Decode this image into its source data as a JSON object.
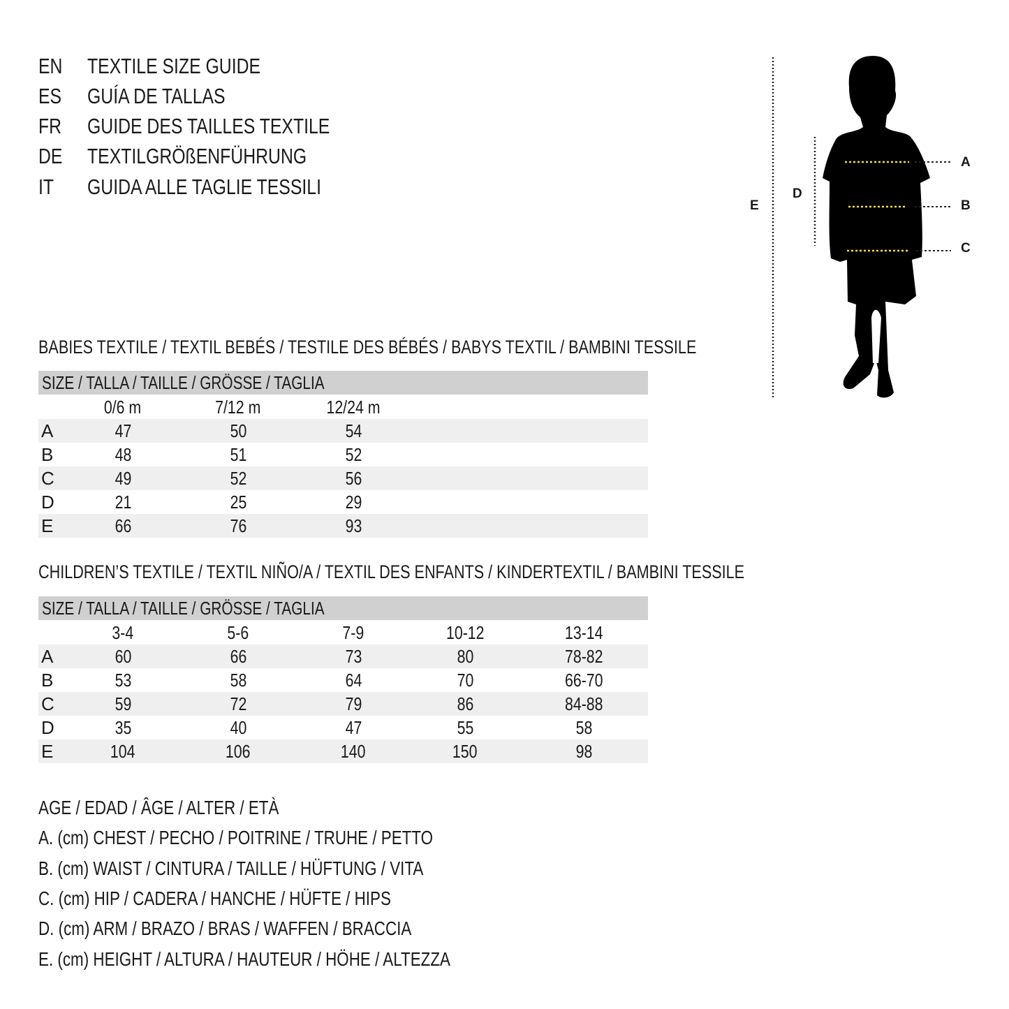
{
  "titles": [
    {
      "code": "EN",
      "text": "TEXTILE SIZE GUIDE"
    },
    {
      "code": "ES",
      "text": "GUÍA DE TALLAS"
    },
    {
      "code": "FR",
      "text": "GUIDE DES TAILLES TEXTILE"
    },
    {
      "code": "DE",
      "text": "TEXTILGRÖßENFÜHRUNG"
    },
    {
      "code": "IT",
      "text": "GUIDA ALLE TAGLIE TESSILI"
    }
  ],
  "figure": {
    "labels": {
      "A": "A",
      "B": "B",
      "C": "C",
      "D": "D",
      "E": "E"
    },
    "accent_color": "#f0e040"
  },
  "babies": {
    "heading": "BABIES TEXTILE / TEXTIL BEBÉS / TESTILE DES BÉBÉS / BABYS TEXTIL / BAMBINI TESSILE",
    "size_header": "SIZE / TALLA / TAILLE / GRÖSSE / TAGLIA",
    "columns": [
      "0/6 m",
      "7/12 m",
      "12/24 m"
    ],
    "rows": [
      {
        "label": "A",
        "values": [
          "47",
          "50",
          "54"
        ]
      },
      {
        "label": "B",
        "values": [
          "48",
          "51",
          "52"
        ]
      },
      {
        "label": "C",
        "values": [
          "49",
          "52",
          "56"
        ]
      },
      {
        "label": "D",
        "values": [
          "21",
          "25",
          "29"
        ]
      },
      {
        "label": "E",
        "values": [
          "66",
          "76",
          "93"
        ]
      }
    ]
  },
  "children": {
    "heading": "CHILDREN’S TEXTILE / TEXTIL NIÑO/A / TEXTIL DES ENFANTS / KINDERTEXTIL / BAMBINI TESSILE",
    "size_header": "SIZE / TALLA / TAILLE / GRÖSSE / TAGLIA",
    "columns": [
      "3-4",
      "5-6",
      "7-9",
      "10-12",
      "13-14"
    ],
    "rows": [
      {
        "label": "A",
        "values": [
          "60",
          "66",
          "73",
          "80",
          "78-82"
        ]
      },
      {
        "label": "B",
        "values": [
          "53",
          "58",
          "64",
          "70",
          "66-70"
        ]
      },
      {
        "label": "C",
        "values": [
          "59",
          "72",
          "79",
          "86",
          "84-88"
        ]
      },
      {
        "label": "D",
        "values": [
          "35",
          "40",
          "47",
          "55",
          "58"
        ]
      },
      {
        "label": "E",
        "values": [
          "104",
          "106",
          "140",
          "150",
          "98"
        ]
      }
    ]
  },
  "legend": [
    "AGE / EDAD / ÂGE / ALTER / ETÀ",
    "A. (cm) CHEST / PECHO / POITRINE / TRUHE / PETTO",
    "B. (cm) WAIST / CINTURA / TAILLE / HÜFTUNG / VITA",
    "C. (cm) HIP / CADERA / HANCHE / HÜFTE / HIPS",
    "D. (cm) ARM / BRAZO / BRAS / WAFFEN / BRACCIA",
    "E. (cm) HEIGHT / ALTURA / HAUTEUR / HÖHE / ALTEZZA"
  ]
}
